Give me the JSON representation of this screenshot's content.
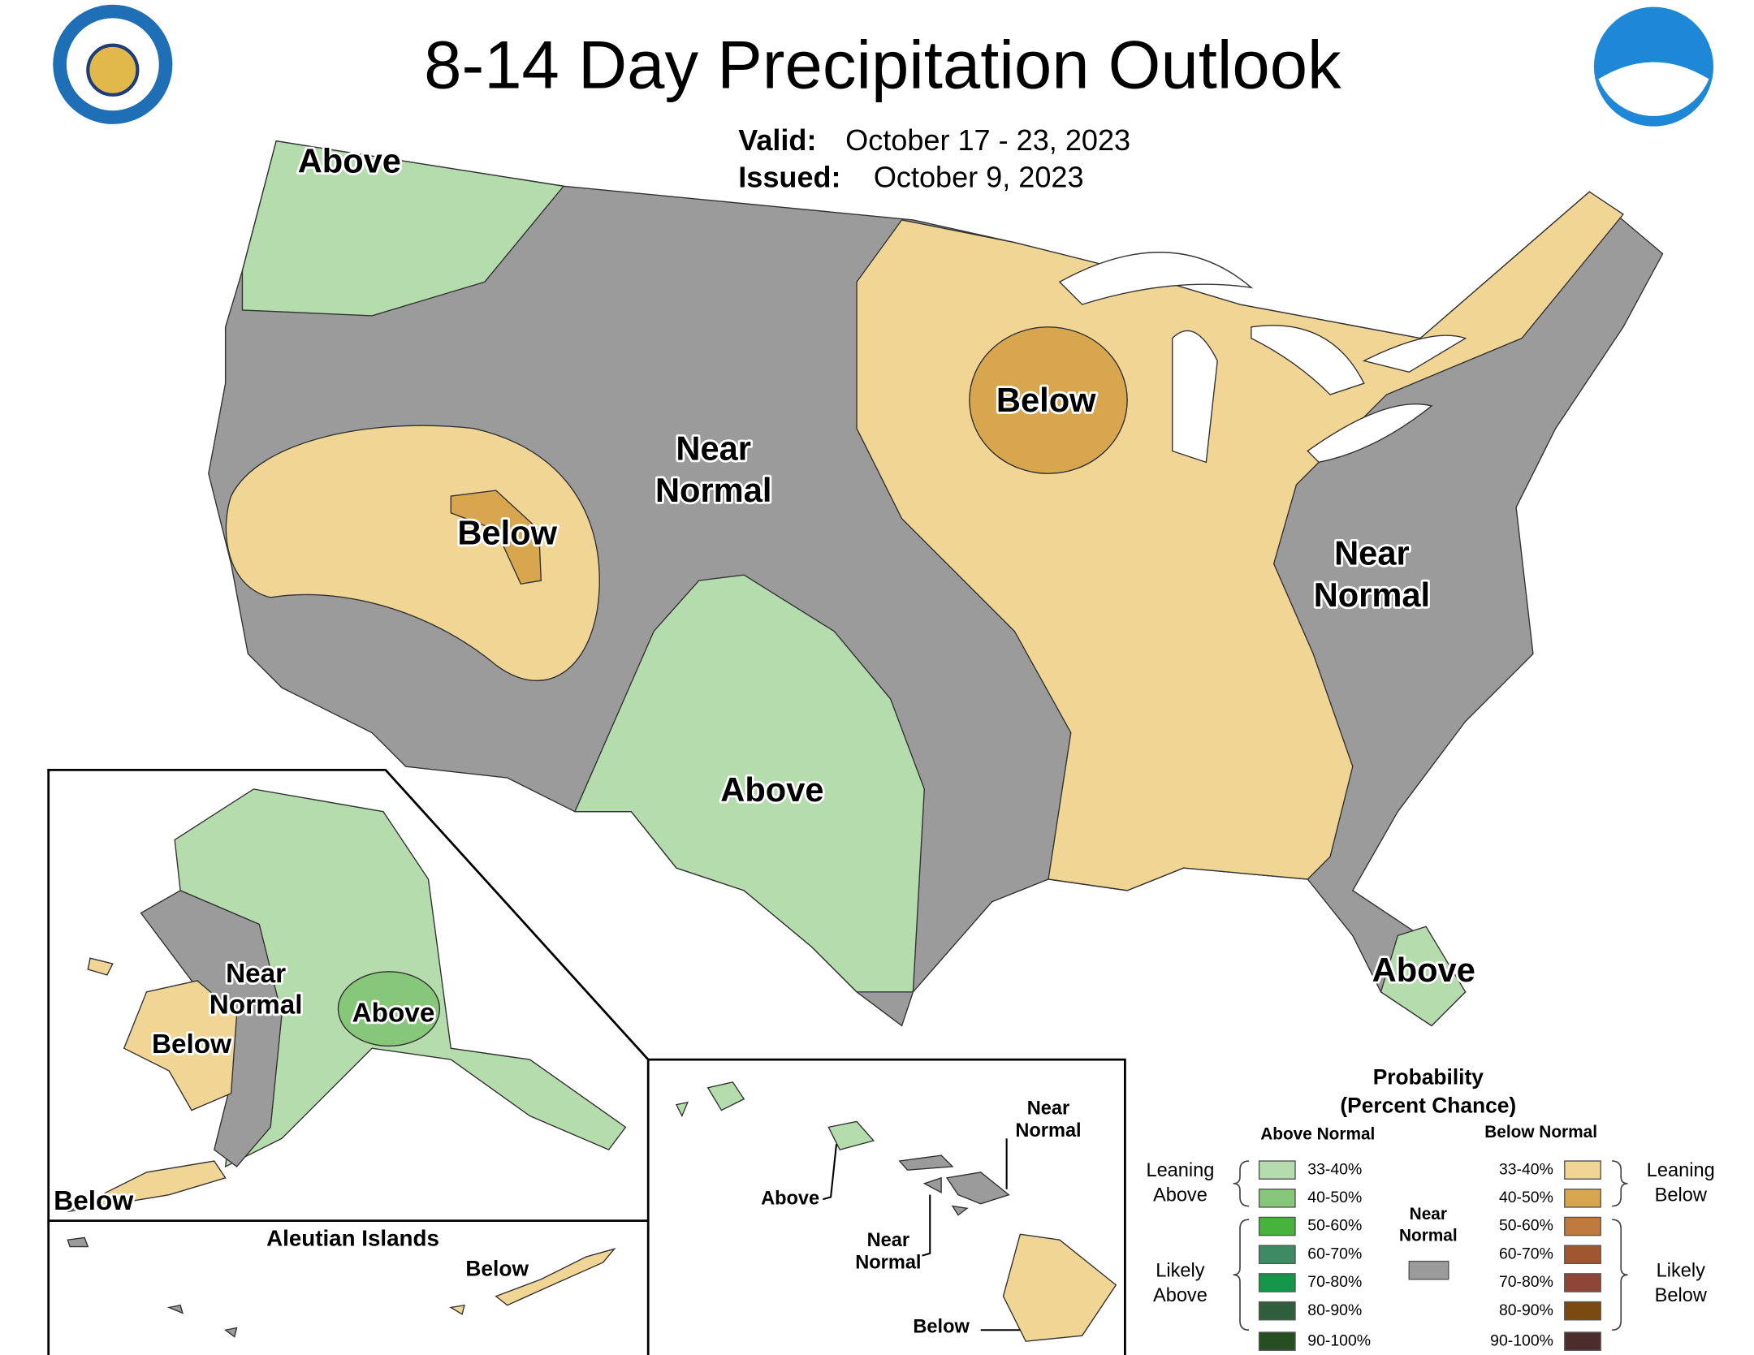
{
  "header": {
    "title": "8-14 Day Precipitation Outlook",
    "valid_label": "Valid:",
    "valid_dates": "October 17 - 23, 2023",
    "issued_label": "Issued:",
    "issued_date": "October 9, 2023"
  },
  "conus_labels": [
    [
      "Above"
    ],
    [
      "Below"
    ],
    [
      "Near",
      "Normal"
    ],
    [
      "Below"
    ],
    [
      "Near",
      "Normal"
    ],
    [
      "Above"
    ],
    [
      "Above"
    ]
  ],
  "alaska_labels": [
    [
      "Near",
      "Normal"
    ],
    [
      "Above"
    ],
    [
      "Below"
    ],
    [
      "Below"
    ]
  ],
  "aleutian": {
    "title": "Aleutian Islands",
    "label": "Below"
  },
  "hawaii_labels": [
    [
      "Near",
      "Normal"
    ],
    [
      "Above"
    ],
    [
      "Near",
      "Normal"
    ],
    [
      "Below"
    ]
  ],
  "legend": {
    "title": [
      "Probability",
      "(Percent Chance)"
    ],
    "above_header": "Above Normal",
    "below_header": "Below Normal",
    "leaning_above": [
      "Leaning",
      "Above"
    ],
    "likely_above": [
      "Likely",
      "Above"
    ],
    "near_normal": [
      "Near",
      "Normal"
    ],
    "leaning_below": [
      "Leaning",
      "Below"
    ],
    "likely_below": [
      "Likely",
      "Below"
    ],
    "near_normal_color": "#9b9b9b",
    "above_categories": [
      {
        "label": "33-40%",
        "color": "#b4dcac"
      },
      {
        "label": "40-50%",
        "color": "#86c77a"
      },
      {
        "label": "50-60%",
        "color": "#46b33d"
      },
      {
        "label": "60-70%",
        "color": "#3d8a63"
      },
      {
        "label": "70-80%",
        "color": "#14974a"
      },
      {
        "label": "80-90%",
        "color": "#2f5e3c"
      },
      {
        "label": "90-100%",
        "color": "#254f21"
      }
    ],
    "below_categories": [
      {
        "label": "33-40%",
        "color": "#f0d595"
      },
      {
        "label": "40-50%",
        "color": "#d7a64f"
      },
      {
        "label": "50-60%",
        "color": "#c07a3b"
      },
      {
        "label": "60-70%",
        "color": "#a0562f"
      },
      {
        "label": "70-80%",
        "color": "#8f4636"
      },
      {
        "label": "80-90%",
        "color": "#7a4a10"
      },
      {
        "label": "90-100%",
        "color": "#4d2c2c"
      }
    ]
  }
}
